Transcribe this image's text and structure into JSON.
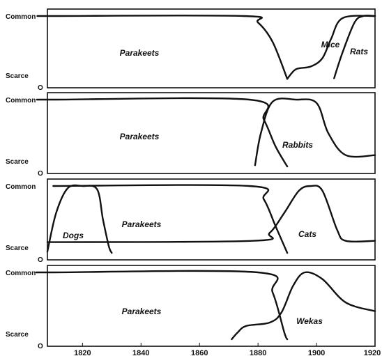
{
  "chart_data": {
    "type": "line",
    "x_ticks": [
      "1820",
      "1840",
      "1860",
      "1880",
      "1900",
      "1920"
    ],
    "xlim": [
      1808,
      1920
    ],
    "ylim": [
      0,
      1
    ],
    "grid": false,
    "panels": [
      {
        "y_labels": {
          "top": "Common",
          "bottom": "Scarce",
          "zero": "O"
        },
        "series": [
          {
            "name": "Parakeets",
            "points": [
              [
                1808,
                1
              ],
              [
                1810,
                1
              ],
              [
                1875,
                1
              ],
              [
                1880,
                0.9
              ],
              [
                1885,
                0.6
              ],
              [
                1890,
                0.03
              ]
            ]
          },
          {
            "name": "Mice",
            "points": [
              [
                1890,
                0.03
              ],
              [
                1893,
                0.18
              ],
              [
                1898,
                0.22
              ],
              [
                1902,
                0.35
              ],
              [
                1905,
                0.65
              ],
              [
                1909,
                0.97
              ],
              [
                1920,
                1
              ]
            ]
          },
          {
            "name": "Rats",
            "points": [
              [
                1906,
                0.04
              ],
              [
                1909,
                0.45
              ],
              [
                1913,
                0.9
              ],
              [
                1916,
                1
              ],
              [
                1920,
                1
              ]
            ]
          }
        ]
      },
      {
        "y_labels": {
          "top": "Common",
          "bottom": "Scarce",
          "zero": "O"
        },
        "series": [
          {
            "name": "Parakeets",
            "points": [
              [
                1808,
                1
              ],
              [
                1810,
                1
              ],
              [
                1877,
                1
              ],
              [
                1882,
                0.7
              ],
              [
                1886,
                0.3
              ],
              [
                1890,
                0
              ]
            ]
          },
          {
            "name": "Rabbits",
            "points": [
              [
                1879,
                0.02
              ],
              [
                1881,
                0.5
              ],
              [
                1885,
                0.97
              ],
              [
                1893,
                1
              ],
              [
                1900,
                0.95
              ],
              [
                1904,
                0.5
              ],
              [
                1910,
                0.17
              ],
              [
                1920,
                0.17
              ]
            ]
          }
        ]
      },
      {
        "y_labels": {
          "top": "Common",
          "bottom": "Scarce",
          "zero": "O"
        },
        "series": [
          {
            "name": "Parakeets",
            "points": [
              [
                1808,
                0.16
              ],
              [
                1878,
                0.18
              ],
              [
                1884,
                0.3
              ],
              [
                1889,
                0.6
              ],
              [
                1894,
                0.93
              ],
              [
                1898,
                1
              ],
              [
                1902,
                0.93
              ],
              [
                1907,
                0.35
              ],
              [
                1910,
                0.18
              ],
              [
                1920,
                0.18
              ]
            ]
          },
          {
            "name": "Cats",
            "points": [
              [
                1810,
                1
              ],
              [
                1877,
                1
              ],
              [
                1882,
                0.8
              ],
              [
                1886,
                0.4
              ],
              [
                1890,
                0
              ]
            ]
          },
          {
            "name": "Dogs",
            "points": [
              [
                1808,
                0.02
              ],
              [
                1811,
                0.6
              ],
              [
                1815,
                0.97
              ],
              [
                1820,
                1
              ],
              [
                1825,
                0.95
              ],
              [
                1827,
                0.5
              ],
              [
                1829,
                0.1
              ],
              [
                1830,
                0
              ]
            ]
          }
        ]
      },
      {
        "y_labels": {
          "top": "Common",
          "bottom": "Scarce",
          "zero": "O"
        },
        "series": [
          {
            "name": "Parakeets",
            "points": [
              [
                1808,
                1
              ],
              [
                1810,
                1
              ],
              [
                1880,
                1
              ],
              [
                1885,
                0.7
              ],
              [
                1889,
                0.1
              ],
              [
                1890,
                0
              ]
            ]
          },
          {
            "name": "Wekas",
            "points": [
              [
                1871,
                0
              ],
              [
                1873,
                0.1
              ],
              [
                1876,
                0.2
              ],
              [
                1884,
                0.25
              ],
              [
                1888,
                0.4
              ],
              [
                1892,
                0.8
              ],
              [
                1896,
                1
              ],
              [
                1902,
                0.9
              ],
              [
                1910,
                0.55
              ],
              [
                1920,
                0.42
              ]
            ]
          }
        ]
      }
    ]
  }
}
